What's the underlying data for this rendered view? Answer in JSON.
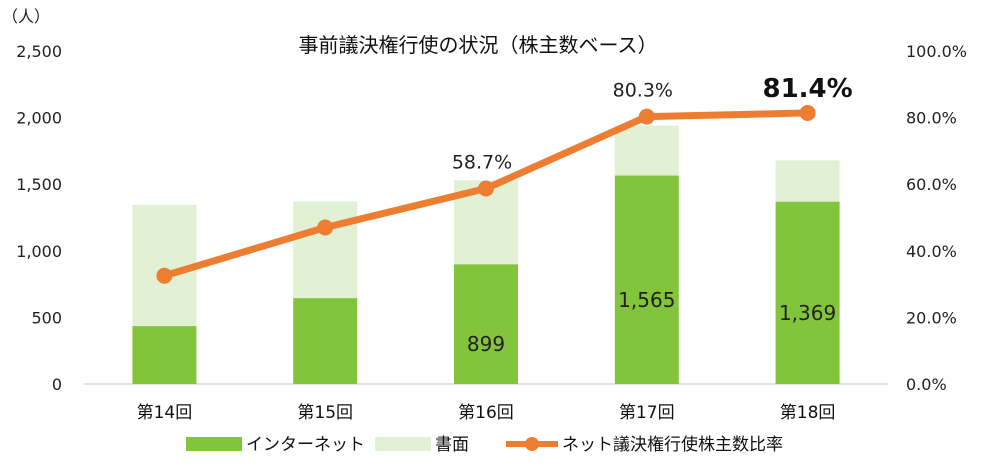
{
  "chart_data": {
    "type": "bar",
    "title": "事前議決権行使の状況（株主数ベース）",
    "y_unit": "（人）",
    "categories": [
      "第14回",
      "第15回",
      "第16回",
      "第17回",
      "第18回"
    ],
    "ylim": [
      0,
      2500
    ],
    "y_ticks": [
      "0",
      "500",
      "1,000",
      "1,500",
      "2,000",
      "2,500"
    ],
    "y2lim": [
      0,
      100
    ],
    "y2_ticks": [
      "0.0%",
      "20.0%",
      "40.0%",
      "60.0%",
      "80.0%",
      "100.0%"
    ],
    "stacked": true,
    "series": [
      {
        "name": "インターネット",
        "type": "bar",
        "color": "#82c43c",
        "values": [
          435,
          645,
          899,
          1565,
          1369
        ],
        "labels": [
          "",
          "",
          "899",
          "1,565",
          "1,369"
        ]
      },
      {
        "name": "書面",
        "type": "bar",
        "color": "#e2f0d4",
        "values": [
          910,
          725,
          630,
          375,
          310
        ]
      },
      {
        "name": "ネット議決権行使株主数比率",
        "type": "line",
        "axis": "right",
        "color": "#ed7d31",
        "values": [
          32.5,
          47.0,
          58.7,
          80.3,
          81.4
        ],
        "labels": [
          "",
          "",
          "58.7%",
          "80.3%",
          "81.4%"
        ]
      }
    ],
    "legend_position": "bottom",
    "grid": false
  }
}
